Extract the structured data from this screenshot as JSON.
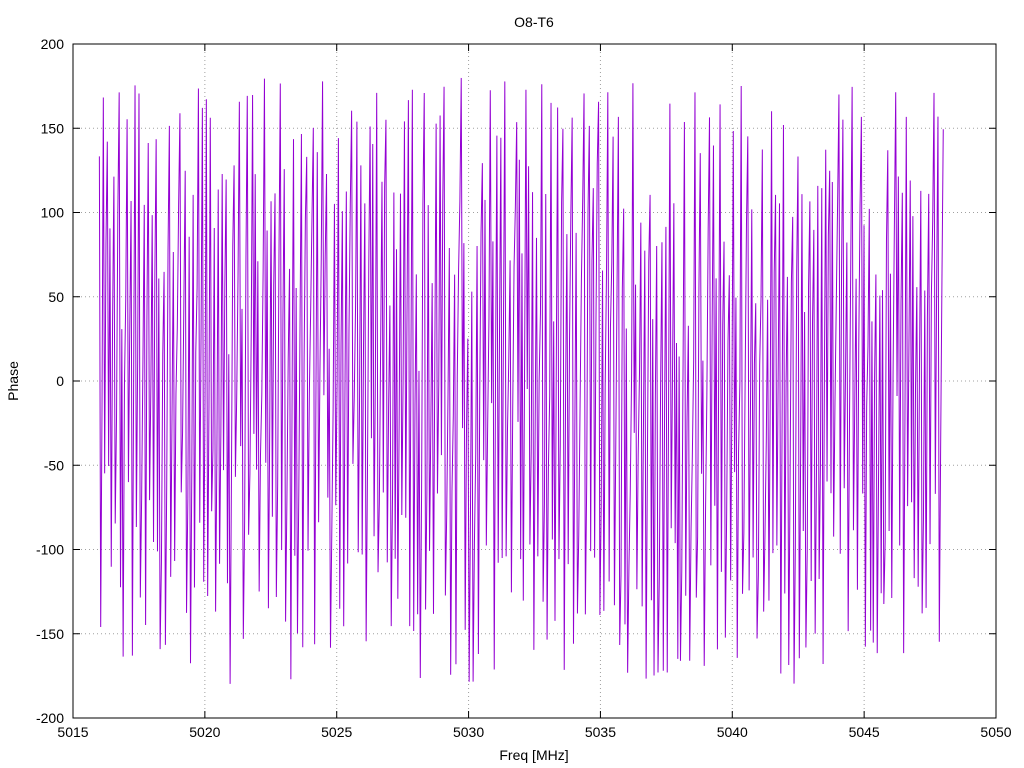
{
  "chart_data": {
    "type": "line",
    "title": "O8-T6",
    "xlabel": "Freq [MHz]",
    "ylabel": "Phase",
    "xlim": [
      5015,
      5050
    ],
    "ylim": [
      -200,
      200
    ],
    "xticks": [
      5015,
      5020,
      5025,
      5030,
      5035,
      5040,
      5045,
      5050
    ],
    "yticks": [
      -200,
      -150,
      -100,
      -50,
      0,
      50,
      100,
      150,
      200
    ],
    "grid": true,
    "legend": "none",
    "series": [
      {
        "color": "#9400d3",
        "x_start": 5016.0,
        "x_end": 5048.0,
        "sample_count": 640,
        "note_shape": "phase wraps rapidly between about -180 and +180 across the whole band"
      }
    ]
  }
}
